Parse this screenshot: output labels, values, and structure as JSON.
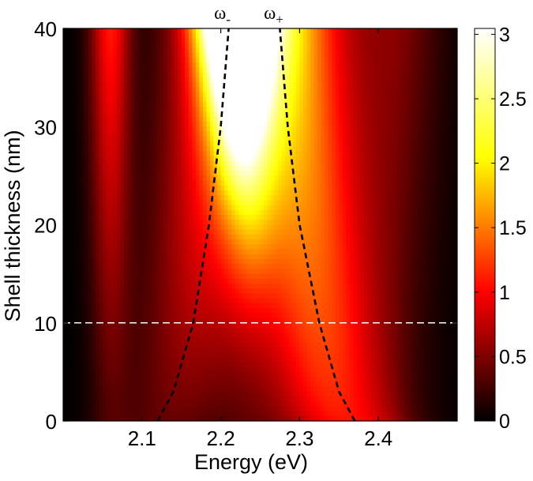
{
  "chart_data": {
    "type": "heatmap",
    "title": "",
    "xlabel": "Energy (eV)",
    "ylabel": "Shell thickness (nm)",
    "xlim": [
      2.0,
      2.5
    ],
    "ylim": [
      0,
      40
    ],
    "x_ticks": [
      2.1,
      2.2,
      2.3,
      2.4
    ],
    "x_tick_labels": [
      "2.1",
      "2.2",
      "2.3",
      "2.4"
    ],
    "y_ticks": [
      0,
      10,
      20,
      30,
      40
    ],
    "y_tick_labels": [
      "0",
      "10",
      "20",
      "30",
      "40"
    ],
    "colorbar": {
      "colormap": "hot",
      "range": [
        0,
        3.0
      ],
      "ticks": [
        0,
        0.5,
        1,
        1.5,
        2,
        2.5,
        3
      ],
      "tick_labels": [
        "0",
        "0.5",
        "1",
        "1.5",
        "2",
        "2.5",
        "3"
      ]
    },
    "series": [
      {
        "name": "ω-",
        "style": "black dashed",
        "points": [
          [
            2.12,
            0
          ],
          [
            2.14,
            3
          ],
          [
            2.165,
            10
          ],
          [
            2.185,
            20
          ],
          [
            2.2,
            30
          ],
          [
            2.21,
            40
          ]
        ]
      },
      {
        "name": "ω+",
        "style": "black dashed",
        "points": [
          [
            2.37,
            0
          ],
          [
            2.35,
            3
          ],
          [
            2.325,
            10
          ],
          [
            2.3,
            20
          ],
          [
            2.285,
            30
          ],
          [
            2.275,
            40
          ]
        ]
      }
    ],
    "reference_line": {
      "orientation": "horizontal",
      "y": 10,
      "style": "white dashed"
    },
    "annotations": [
      {
        "text": "ω",
        "subscript": "-",
        "near_series": "ω-"
      },
      {
        "text": "ω",
        "subscript": "+",
        "near_series": "ω+"
      }
    ]
  }
}
